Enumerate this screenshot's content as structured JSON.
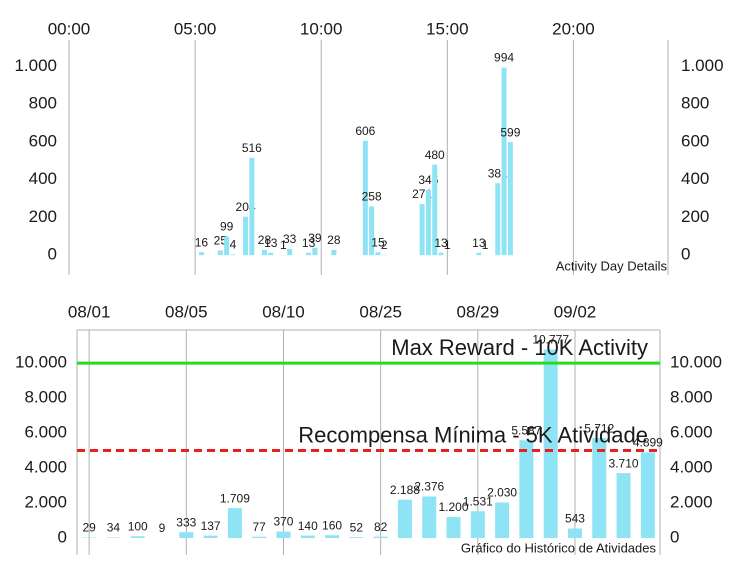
{
  "chart_data": [
    {
      "type": "bar",
      "title": "Activity Day Details",
      "x": [
        5.25,
        6.0,
        6.25,
        6.5,
        7.0,
        7.25,
        7.75,
        8.0,
        8.5,
        8.75,
        9.5,
        9.75,
        10.5,
        11.75,
        12.0,
        12.25,
        12.5,
        14.0,
        14.25,
        14.5,
        14.75,
        15.0,
        16.25,
        16.5,
        17.0,
        17.25,
        17.5
      ],
      "values": [
        16,
        25,
        99,
        4,
        204,
        516,
        28,
        13,
        1,
        33,
        13,
        39,
        28,
        606,
        258,
        15,
        2,
        271,
        346,
        480,
        13,
        1,
        13,
        1,
        381,
        994,
        599
      ],
      "color": "#8ee3f5",
      "xlim": [
        0,
        23.75
      ],
      "xticks": [
        {
          "value": 0,
          "label": "00:00"
        },
        {
          "value": 5,
          "label": "05:00"
        },
        {
          "value": 10,
          "label": "10:00"
        },
        {
          "value": 15,
          "label": "15:00"
        },
        {
          "value": 20,
          "label": "20:00"
        }
      ],
      "ylim": [
        -105,
        1140
      ],
      "yticks": [
        0,
        200,
        400,
        600,
        800,
        {
          "value": 1000,
          "label": "1.000"
        }
      ],
      "y_labels_both_sides": true
    },
    {
      "type": "bar",
      "title": "Gráfico do Histórico de Atividades",
      "categories": [
        "08/01",
        null,
        null,
        null,
        "08/05",
        null,
        null,
        null,
        "08/10",
        null,
        null,
        null,
        "08/25",
        null,
        null,
        null,
        "08/29",
        null,
        null,
        null,
        "09/02",
        null,
        null,
        null
      ],
      "values": [
        29,
        34,
        100,
        9,
        333,
        137,
        1709,
        77,
        370,
        140,
        160,
        52,
        82,
        2188,
        2376,
        1200,
        1531,
        2030,
        5587,
        10777,
        543,
        5712,
        3710,
        4899
      ],
      "value_labels": [
        "29",
        "34",
        "100",
        "9",
        "333",
        "137",
        "1.709",
        "77",
        "370",
        "140",
        "160",
        "52",
        "82",
        "2.188",
        "2.376",
        "1.200",
        "1.531",
        "2.030",
        "5.587",
        "10.777",
        "543",
        "5.712",
        "3.710",
        "4.899"
      ],
      "color": "#8ee3f5",
      "ylim": [
        -970,
        11890
      ],
      "yticks": [
        0,
        {
          "value": 2000,
          "label": "2.000"
        },
        {
          "value": 4000,
          "label": "4.000"
        },
        {
          "value": 6000,
          "label": "6.000"
        },
        {
          "value": 8000,
          "label": "8.000"
        },
        {
          "value": 10000,
          "label": "10.000"
        }
      ],
      "y_labels_both_sides": true,
      "reference_lines": [
        {
          "value": 10000,
          "label": "Max Reward - 10K Activity",
          "color": "#22dd22",
          "style": "solid"
        },
        {
          "value": 5000,
          "label": "Recompensa Mínima - 5K Atividade",
          "color": "#e82020",
          "style": "dashed"
        }
      ]
    }
  ]
}
